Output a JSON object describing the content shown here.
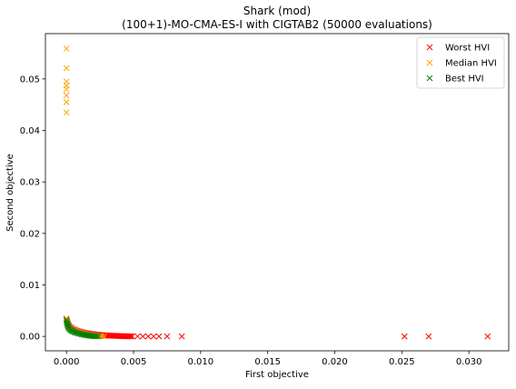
{
  "chart_data": {
    "type": "scatter",
    "title": "Shark (mod)",
    "subtitle": "(100+1)-MO-CMA-ES-I with CIGTAB2 (50000 evaluations)",
    "xlabel": "First objective",
    "ylabel": "Second objective",
    "xlim": [
      -0.00157,
      0.03297
    ],
    "ylim": [
      -0.0028,
      0.0588
    ],
    "x_ticks": [
      0.0,
      0.005,
      0.01,
      0.015,
      0.02,
      0.025,
      0.03
    ],
    "x_tick_labels": [
      "0.000",
      "0.005",
      "0.010",
      "0.015",
      "0.020",
      "0.025",
      "0.030"
    ],
    "y_ticks": [
      0.0,
      0.01,
      0.02,
      0.03,
      0.04,
      0.05
    ],
    "y_tick_labels": [
      "0.00",
      "0.01",
      "0.02",
      "0.03",
      "0.04",
      "0.05"
    ],
    "grid": false,
    "legend_position": "top-right",
    "marker": "x",
    "series": [
      {
        "name": "Worst HVI",
        "color": "#ff0000",
        "points": [
          [
            0.0,
            0.0034
          ],
          [
            5e-05,
            0.0029
          ],
          [
            0.0001,
            0.0025
          ],
          [
            0.00015,
            0.0022
          ],
          [
            0.0002,
            0.00195
          ],
          [
            0.0003,
            0.00175
          ],
          [
            0.0004,
            0.00155
          ],
          [
            0.0005,
            0.0014
          ],
          [
            0.0006,
            0.00128
          ],
          [
            0.0007,
            0.00118
          ],
          [
            0.0008,
            0.00108
          ],
          [
            0.0009,
            0.001
          ],
          [
            0.001,
            0.00092
          ],
          [
            0.0011,
            0.00085
          ],
          [
            0.0012,
            0.00078
          ],
          [
            0.0013,
            0.00072
          ],
          [
            0.0014,
            0.00067
          ],
          [
            0.0015,
            0.00062
          ],
          [
            0.0016,
            0.00057
          ],
          [
            0.0017,
            0.00053
          ],
          [
            0.0018,
            0.00049
          ],
          [
            0.0019,
            0.00045
          ],
          [
            0.002,
            0.00042
          ],
          [
            0.0021,
            0.00039
          ],
          [
            0.0022,
            0.00036
          ],
          [
            0.0023,
            0.00033
          ],
          [
            0.0024,
            0.0003
          ],
          [
            0.0025,
            0.00028
          ],
          [
            0.0026,
            0.00026
          ],
          [
            0.0027,
            0.00024
          ],
          [
            0.0028,
            0.00022
          ],
          [
            0.0029,
            0.0002
          ],
          [
            0.003,
            0.00018
          ],
          [
            0.0031,
            0.00017
          ],
          [
            0.0032,
            0.00015
          ],
          [
            0.0033,
            0.00014
          ],
          [
            0.0034,
            0.00013
          ],
          [
            0.0035,
            0.00012
          ],
          [
            0.0036,
            0.00011
          ],
          [
            0.0037,
            0.0001
          ],
          [
            0.0038,
            9e-05
          ],
          [
            0.0039,
            8e-05
          ],
          [
            0.004,
            7e-05
          ],
          [
            0.0041,
            6e-05
          ],
          [
            0.0042,
            5e-05
          ],
          [
            0.0043,
            4.5e-05
          ],
          [
            0.0044,
            4e-05
          ],
          [
            0.0045,
            3.5e-05
          ],
          [
            0.0046,
            3e-05
          ],
          [
            0.0047,
            2.5e-05
          ],
          [
            0.0048,
            2e-05
          ],
          [
            0.0049,
            1.5e-05
          ],
          [
            0.0053,
            1e-05
          ],
          [
            0.0057,
            8e-06
          ],
          [
            0.0061,
            6e-06
          ],
          [
            0.0065,
            4e-06
          ],
          [
            0.0069,
            3e-06
          ],
          [
            0.0075,
            2e-06
          ],
          [
            0.0086,
            1e-06
          ],
          [
            0.0252,
            0.0
          ],
          [
            0.027,
            0.0
          ],
          [
            0.0314,
            0.0
          ]
        ]
      },
      {
        "name": "Median HVI",
        "color": "#ffa500",
        "points": [
          [
            0.0,
            0.0559
          ],
          [
            0.0,
            0.0521
          ],
          [
            0.0,
            0.0495
          ],
          [
            0.0,
            0.0487
          ],
          [
            0.0,
            0.048
          ],
          [
            0.0,
            0.0468
          ],
          [
            0.0,
            0.0455
          ],
          [
            0.0,
            0.0435
          ],
          [
            0.0,
            0.0035
          ],
          [
            3e-05,
            0.0031
          ],
          [
            6e-05,
            0.0027
          ],
          [
            0.0001,
            0.0023
          ],
          [
            0.00015,
            0.002
          ],
          [
            0.0002,
            0.0018
          ],
          [
            0.0003,
            0.0016
          ],
          [
            0.0004,
            0.0014
          ],
          [
            0.0005,
            0.0012
          ],
          [
            0.0006,
            0.0011
          ],
          [
            0.0007,
            0.001
          ],
          [
            0.0008,
            0.0009
          ],
          [
            0.0009,
            0.0008
          ],
          [
            0.001,
            0.0007
          ],
          [
            0.0011,
            0.00062
          ],
          [
            0.0012,
            0.00055
          ],
          [
            0.0013,
            0.00048
          ],
          [
            0.0014,
            0.00042
          ],
          [
            0.0015,
            0.00037
          ],
          [
            0.0016,
            0.00032
          ],
          [
            0.0017,
            0.00028
          ],
          [
            0.0018,
            0.00024
          ],
          [
            0.0019,
            0.0002
          ],
          [
            0.002,
            0.00017
          ],
          [
            0.0021,
            0.00014
          ],
          [
            0.0022,
            0.00011
          ],
          [
            0.0023,
            8e-05
          ],
          [
            0.0024,
            6e-05
          ],
          [
            0.0025,
            4e-05
          ],
          [
            0.0026,
            2e-05
          ],
          [
            0.0028,
            0.0
          ]
        ]
      },
      {
        "name": "Best HVI",
        "color": "#008000",
        "points": [
          [
            0.0,
            0.0032
          ],
          [
            2e-05,
            0.0028
          ],
          [
            5e-05,
            0.0025
          ],
          [
            8e-05,
            0.0022
          ],
          [
            0.00012,
            0.0019
          ],
          [
            0.00017,
            0.0017
          ],
          [
            0.00022,
            0.0015
          ],
          [
            0.00028,
            0.00135
          ],
          [
            0.00035,
            0.0012
          ],
          [
            0.00042,
            0.00108
          ],
          [
            0.0005,
            0.00097
          ],
          [
            0.00058,
            0.00087
          ],
          [
            0.00066,
            0.00078
          ],
          [
            0.00075,
            0.0007
          ],
          [
            0.00085,
            0.00062
          ],
          [
            0.00095,
            0.00055
          ],
          [
            0.00105,
            0.00048
          ],
          [
            0.00115,
            0.00042
          ],
          [
            0.00125,
            0.00036
          ],
          [
            0.00135,
            0.00031
          ],
          [
            0.00145,
            0.00026
          ],
          [
            0.00155,
            0.00022
          ],
          [
            0.00165,
            0.00018
          ],
          [
            0.00175,
            0.00014
          ],
          [
            0.00185,
            0.00011
          ],
          [
            0.00195,
            8e-05
          ],
          [
            0.00205,
            6e-05
          ],
          [
            0.00215,
            4e-05
          ],
          [
            0.00225,
            2e-05
          ],
          [
            0.0024,
            1e-05
          ]
        ]
      }
    ]
  }
}
